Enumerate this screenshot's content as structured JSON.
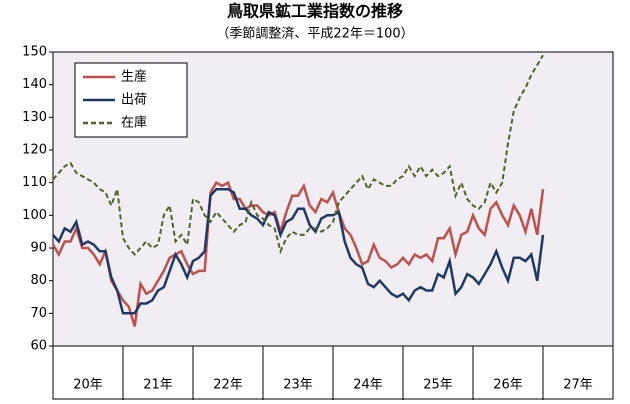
{
  "chart_data": {
    "type": "line",
    "title": "鳥取県鉱工業指数の推移",
    "subtitle": "（季節調整済、平成22年＝100）",
    "x": [
      0,
      1,
      2,
      3,
      4,
      5,
      6,
      7,
      8,
      9,
      10,
      11,
      12,
      13,
      14,
      15,
      16,
      17,
      18,
      19,
      20,
      21,
      22,
      23,
      24,
      25,
      26,
      27,
      28,
      29,
      30,
      31,
      32,
      33,
      34,
      35,
      36,
      37,
      38,
      39,
      40,
      41,
      42,
      43,
      44,
      45,
      46,
      47,
      48,
      49,
      50,
      51,
      52,
      53,
      54,
      55,
      56,
      57,
      58,
      59,
      60,
      61,
      62,
      63,
      64,
      65,
      66,
      67,
      68,
      69,
      70,
      71,
      72,
      73,
      74,
      75,
      76,
      77,
      78,
      79,
      80,
      81,
      82,
      83,
      84
    ],
    "xlim": [
      0,
      96
    ],
    "xticks": [
      {
        "value": 6,
        "label": "20年"
      },
      {
        "value": 18,
        "label": "21年"
      },
      {
        "value": 30,
        "label": "22年"
      },
      {
        "value": 42,
        "label": "23年"
      },
      {
        "value": 54,
        "label": "24年"
      },
      {
        "value": 66,
        "label": "25年"
      },
      {
        "value": 78,
        "label": "26年"
      },
      {
        "value": 90,
        "label": "27年"
      }
    ],
    "ylim": [
      60,
      150
    ],
    "yticks": [
      60,
      70,
      80,
      90,
      100,
      110,
      120,
      130,
      140,
      150
    ],
    "grid": false,
    "legend": "top-left",
    "series": [
      {
        "name": "生産",
        "color": "#c0504d",
        "dash": false,
        "values": [
          91,
          88,
          92,
          92,
          96,
          90,
          90,
          88,
          85,
          89,
          80,
          77,
          74,
          72,
          66,
          79,
          76,
          77,
          80,
          83,
          87,
          88,
          89,
          85,
          82,
          83,
          83,
          107,
          110,
          109,
          110,
          105,
          105,
          102,
          103,
          103,
          101,
          100,
          101,
          95,
          101,
          106,
          106,
          109,
          103,
          101,
          105,
          104,
          107,
          101,
          96,
          94,
          90,
          85,
          86,
          91,
          87,
          86,
          84,
          85,
          87,
          85,
          88,
          87,
          88,
          86,
          93,
          93,
          96,
          88,
          94,
          95,
          100,
          96,
          94,
          102,
          104,
          100,
          97,
          103,
          100,
          95,
          102,
          94,
          108
        ]
      },
      {
        "name": "出荷",
        "color": "#1f3864",
        "dash": false,
        "values": [
          94,
          92,
          96,
          95,
          98,
          91,
          92,
          91,
          89,
          89,
          81,
          77,
          70,
          70,
          70,
          73,
          73,
          74,
          77,
          78,
          83,
          88,
          85,
          81,
          86,
          87,
          89,
          106,
          108,
          108,
          108,
          107,
          102,
          102,
          100,
          99,
          97,
          101,
          100,
          94,
          98,
          99,
          102,
          102,
          97,
          95,
          99,
          100,
          100,
          101,
          92,
          87,
          85,
          84,
          79,
          78,
          80,
          78,
          76,
          75,
          76,
          74,
          77,
          78,
          77,
          77,
          82,
          81,
          86,
          76,
          78,
          82,
          81,
          79,
          82,
          85,
          89,
          84,
          80,
          87,
          87,
          86,
          88,
          80,
          94
        ]
      },
      {
        "name": "在庫",
        "color": "#4f6228",
        "dash": true,
        "values": [
          111,
          113,
          115,
          116,
          113,
          112,
          111,
          110,
          108,
          107,
          103,
          108,
          93,
          90,
          88,
          90,
          92,
          90,
          91,
          100,
          103,
          92,
          94,
          91,
          105,
          104,
          100,
          98,
          101,
          99,
          97,
          95,
          97,
          98,
          104,
          100,
          99,
          97,
          96,
          89,
          93,
          95,
          94,
          94,
          96,
          96,
          95,
          96,
          98,
          104,
          106,
          108,
          110,
          112,
          108,
          111,
          110,
          109,
          109,
          111,
          112,
          115,
          112,
          115,
          112,
          114,
          112,
          113,
          115,
          106,
          110,
          105,
          103,
          102,
          104,
          110,
          107,
          110,
          122,
          132,
          136,
          139,
          143,
          146,
          149
        ]
      }
    ]
  }
}
